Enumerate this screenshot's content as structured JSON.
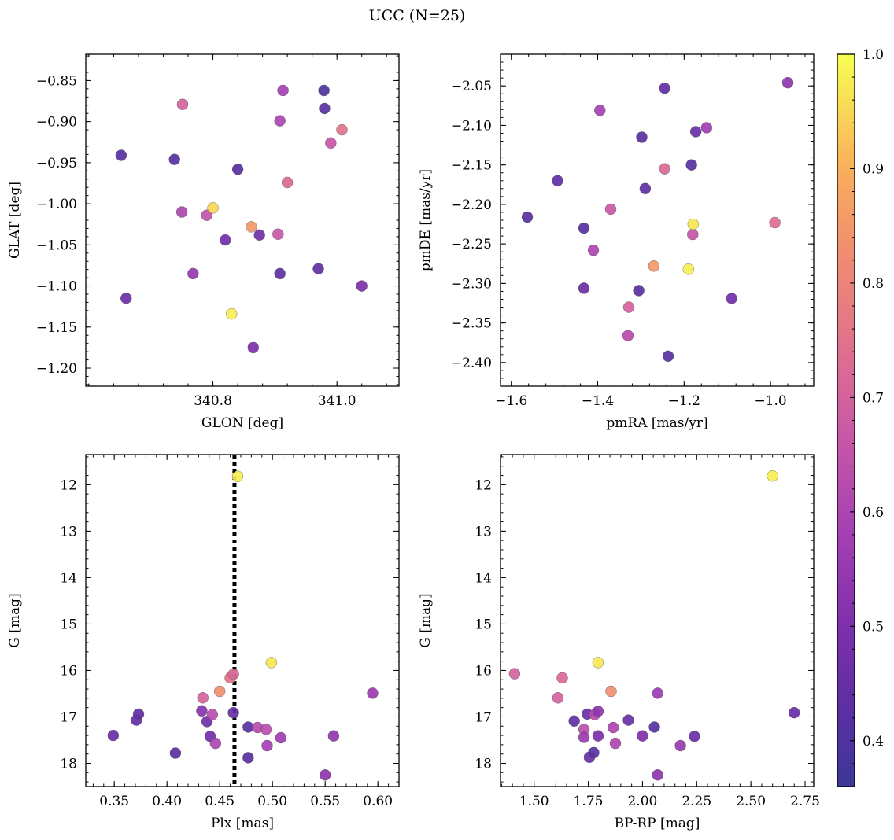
{
  "chart_data": {
    "title": "UCC (N=25)",
    "type": "scatter",
    "color_scale": {
      "name": "plasma",
      "range": [
        0.36,
        1.0
      ],
      "ticks": [
        0.4,
        0.5,
        0.6,
        0.7,
        0.8,
        0.9,
        1.0
      ],
      "tick_labels": [
        "0.4",
        "0.5",
        "0.6",
        "0.7",
        "0.8",
        "0.9",
        "1.0"
      ]
    },
    "panels": [
      {
        "id": "glon-glat",
        "xlabel": "GLON [deg]",
        "ylabel": "GLAT [deg]",
        "xlim": [
          340.595,
          341.1
        ],
        "ylim": [
          -1.222,
          -0.818
        ],
        "y_inverted": false,
        "xticks": [
          340.8,
          341.0
        ],
        "xtick_labels": [
          "340.8",
          "341.0"
        ],
        "yticks": [
          -0.85,
          -0.9,
          -0.95,
          -1.0,
          -1.05,
          -1.1,
          -1.15,
          -1.2
        ],
        "ytick_labels": [
          "−0.85",
          "−0.90",
          "−0.95",
          "−1.00",
          "−1.05",
          "−1.10",
          "−1.15",
          "−1.20"
        ],
        "points": [
          {
            "x": 340.652,
            "y": -0.941,
            "p": 0.42
          },
          {
            "x": 340.66,
            "y": -1.115,
            "p": 0.46
          },
          {
            "x": 340.751,
            "y": -0.879,
            "p": 0.7
          },
          {
            "x": 340.738,
            "y": -0.946,
            "p": 0.42
          },
          {
            "x": 340.75,
            "y": -1.01,
            "p": 0.6
          },
          {
            "x": 340.768,
            "y": -1.085,
            "p": 0.55
          },
          {
            "x": 340.79,
            "y": -1.014,
            "p": 0.65
          },
          {
            "x": 340.8,
            "y": -1.005,
            "p": 0.95
          },
          {
            "x": 340.82,
            "y": -1.044,
            "p": 0.47
          },
          {
            "x": 340.83,
            "y": -1.134,
            "p": 0.98
          },
          {
            "x": 340.84,
            "y": -0.958,
            "p": 0.42
          },
          {
            "x": 340.862,
            "y": -1.028,
            "p": 0.85
          },
          {
            "x": 340.865,
            "y": -1.175,
            "p": 0.5
          },
          {
            "x": 340.875,
            "y": -1.038,
            "p": 0.47
          },
          {
            "x": 340.905,
            "y": -1.037,
            "p": 0.67
          },
          {
            "x": 340.908,
            "y": -1.085,
            "p": 0.43
          },
          {
            "x": 340.908,
            "y": -0.899,
            "p": 0.6
          },
          {
            "x": 340.913,
            "y": -0.862,
            "p": 0.58
          },
          {
            "x": 340.92,
            "y": -0.974,
            "p": 0.72
          },
          {
            "x": 340.97,
            "y": -1.079,
            "p": 0.44
          },
          {
            "x": 340.979,
            "y": -0.862,
            "p": 0.4
          },
          {
            "x": 340.98,
            "y": -0.884,
            "p": 0.42
          },
          {
            "x": 340.99,
            "y": -0.926,
            "p": 0.66
          },
          {
            "x": 341.008,
            "y": -0.91,
            "p": 0.75
          },
          {
            "x": 341.04,
            "y": -1.1,
            "p": 0.5
          }
        ]
      },
      {
        "id": "pmra-pmde",
        "xlabel": "pmRA [mas/yr]",
        "ylabel": "pmDE [mas/yr]",
        "xlim": [
          -1.625,
          -0.9
        ],
        "ylim": [
          -2.43,
          -2.01
        ],
        "y_inverted": false,
        "xticks": [
          -1.6,
          -1.4,
          -1.2,
          -1.0
        ],
        "xtick_labels": [
          "−1.6",
          "−1.4",
          "−1.2",
          "−1.0"
        ],
        "yticks": [
          -2.05,
          -2.1,
          -2.15,
          -2.2,
          -2.25,
          -2.3,
          -2.35,
          -2.4
        ],
        "ytick_labels": [
          "−2.05",
          "−2.10",
          "−2.15",
          "−2.20",
          "−2.25",
          "−2.30",
          "−2.35",
          "−2.40"
        ],
        "points": [
          {
            "x": -1.563,
            "y": -2.216,
            "p": 0.42
          },
          {
            "x": -1.493,
            "y": -2.17,
            "p": 0.44
          },
          {
            "x": -1.432,
            "y": -2.23,
            "p": 0.42
          },
          {
            "x": -1.432,
            "y": -2.306,
            "p": 0.46
          },
          {
            "x": -1.41,
            "y": -2.258,
            "p": 0.6
          },
          {
            "x": -1.395,
            "y": -2.081,
            "p": 0.58
          },
          {
            "x": -1.37,
            "y": -2.206,
            "p": 0.67
          },
          {
            "x": -1.33,
            "y": -2.366,
            "p": 0.62
          },
          {
            "x": -1.328,
            "y": -2.33,
            "p": 0.7
          },
          {
            "x": -1.305,
            "y": -2.309,
            "p": 0.42
          },
          {
            "x": -1.298,
            "y": -2.115,
            "p": 0.42
          },
          {
            "x": -1.29,
            "y": -2.18,
            "p": 0.44
          },
          {
            "x": -1.27,
            "y": -2.278,
            "p": 0.85
          },
          {
            "x": -1.245,
            "y": -2.155,
            "p": 0.72
          },
          {
            "x": -1.245,
            "y": -2.053,
            "p": 0.44
          },
          {
            "x": -1.237,
            "y": -2.392,
            "p": 0.42
          },
          {
            "x": -1.19,
            "y": -2.282,
            "p": 0.98
          },
          {
            "x": -1.183,
            "y": -2.15,
            "p": 0.42
          },
          {
            "x": -1.18,
            "y": -2.238,
            "p": 0.66
          },
          {
            "x": -1.179,
            "y": -2.225,
            "p": 0.97
          },
          {
            "x": -1.173,
            "y": -2.108,
            "p": 0.45
          },
          {
            "x": -1.148,
            "y": -2.103,
            "p": 0.57
          },
          {
            "x": -1.09,
            "y": -2.319,
            "p": 0.47
          },
          {
            "x": -0.99,
            "y": -2.223,
            "p": 0.73
          },
          {
            "x": -0.96,
            "y": -2.046,
            "p": 0.53
          }
        ]
      },
      {
        "id": "plx-g",
        "xlabel": "Plx [mas]",
        "ylabel": "G [mag]",
        "xlim": [
          0.323,
          0.62
        ],
        "ylim": [
          11.35,
          18.5
        ],
        "y_inverted": true,
        "xticks": [
          0.35,
          0.4,
          0.45,
          0.5,
          0.55,
          0.6
        ],
        "xtick_labels": [
          "0.35",
          "0.40",
          "0.45",
          "0.50",
          "0.55",
          "0.60"
        ],
        "yticks": [
          12,
          13,
          14,
          15,
          16,
          17,
          18
        ],
        "ytick_labels": [
          "12",
          "13",
          "14",
          "15",
          "16",
          "17",
          "18"
        ],
        "vline": 0.464,
        "points": [
          {
            "x": 0.349,
            "y": 17.4,
            "p": 0.46
          },
          {
            "x": 0.371,
            "y": 17.07,
            "p": 0.44
          },
          {
            "x": 0.373,
            "y": 16.94,
            "p": 0.44
          },
          {
            "x": 0.408,
            "y": 17.78,
            "p": 0.42
          },
          {
            "x": 0.433,
            "y": 16.87,
            "p": 0.52
          },
          {
            "x": 0.434,
            "y": 16.59,
            "p": 0.7
          },
          {
            "x": 0.438,
            "y": 17.1,
            "p": 0.47
          },
          {
            "x": 0.441,
            "y": 17.42,
            "p": 0.47
          },
          {
            "x": 0.443,
            "y": 16.95,
            "p": 0.63
          },
          {
            "x": 0.446,
            "y": 17.57,
            "p": 0.6
          },
          {
            "x": 0.45,
            "y": 16.45,
            "p": 0.83
          },
          {
            "x": 0.46,
            "y": 16.16,
            "p": 0.75
          },
          {
            "x": 0.463,
            "y": 16.08,
            "p": 0.72
          },
          {
            "x": 0.463,
            "y": 16.91,
            "p": 0.45
          },
          {
            "x": 0.467,
            "y": 11.82,
            "p": 0.98
          },
          {
            "x": 0.477,
            "y": 17.22,
            "p": 0.42
          },
          {
            "x": 0.477,
            "y": 17.88,
            "p": 0.42
          },
          {
            "x": 0.486,
            "y": 17.23,
            "p": 0.62
          },
          {
            "x": 0.494,
            "y": 17.27,
            "p": 0.63
          },
          {
            "x": 0.495,
            "y": 17.62,
            "p": 0.58
          },
          {
            "x": 0.499,
            "y": 15.83,
            "p": 0.97
          },
          {
            "x": 0.508,
            "y": 17.45,
            "p": 0.57
          },
          {
            "x": 0.55,
            "y": 18.25,
            "p": 0.53
          },
          {
            "x": 0.558,
            "y": 17.41,
            "p": 0.54
          },
          {
            "x": 0.595,
            "y": 16.49,
            "p": 0.56
          }
        ]
      },
      {
        "id": "bprp-g",
        "xlabel": "BP-RP [mag]",
        "ylabel": "G [mag]",
        "xlim": [
          1.345,
          2.79
        ],
        "ylim": [
          11.35,
          18.5
        ],
        "y_inverted": true,
        "xticks": [
          1.5,
          1.75,
          2.0,
          2.25,
          2.5,
          2.75
        ],
        "xtick_labels": [
          "1.50",
          "1.75",
          "2.00",
          "2.25",
          "2.50",
          "2.75"
        ],
        "yticks": [
          12,
          13,
          14,
          15,
          16,
          17,
          18
        ],
        "ytick_labels": [
          "12",
          "13",
          "14",
          "15",
          "16",
          "17",
          "18"
        ],
        "points": [
          {
            "x": 1.41,
            "y": 16.07,
            "p": 0.7
          },
          {
            "x": 1.61,
            "y": 16.59,
            "p": 0.7
          },
          {
            "x": 1.63,
            "y": 16.16,
            "p": 0.72
          },
          {
            "x": 1.685,
            "y": 17.09,
            "p": 0.44
          },
          {
            "x": 1.73,
            "y": 17.27,
            "p": 0.64
          },
          {
            "x": 1.73,
            "y": 17.44,
            "p": 0.56
          },
          {
            "x": 1.745,
            "y": 16.94,
            "p": 0.46
          },
          {
            "x": 1.755,
            "y": 17.87,
            "p": 0.45
          },
          {
            "x": 1.775,
            "y": 17.77,
            "p": 0.42
          },
          {
            "x": 1.78,
            "y": 16.95,
            "p": 0.62
          },
          {
            "x": 1.795,
            "y": 16.88,
            "p": 0.53
          },
          {
            "x": 1.795,
            "y": 17.41,
            "p": 0.5
          },
          {
            "x": 1.795,
            "y": 15.83,
            "p": 0.97
          },
          {
            "x": 1.855,
            "y": 16.45,
            "p": 0.83
          },
          {
            "x": 1.865,
            "y": 17.23,
            "p": 0.6
          },
          {
            "x": 1.875,
            "y": 17.57,
            "p": 0.6
          },
          {
            "x": 1.935,
            "y": 17.07,
            "p": 0.45
          },
          {
            "x": 2.0,
            "y": 17.41,
            "p": 0.5
          },
          {
            "x": 2.055,
            "y": 17.22,
            "p": 0.42
          },
          {
            "x": 2.07,
            "y": 16.49,
            "p": 0.56
          },
          {
            "x": 2.07,
            "y": 18.25,
            "p": 0.53
          },
          {
            "x": 2.175,
            "y": 17.62,
            "p": 0.55
          },
          {
            "x": 2.24,
            "y": 17.42,
            "p": 0.46
          },
          {
            "x": 2.6,
            "y": 11.81,
            "p": 0.98
          },
          {
            "x": 2.7,
            "y": 16.91,
            "p": 0.45
          }
        ]
      }
    ]
  }
}
